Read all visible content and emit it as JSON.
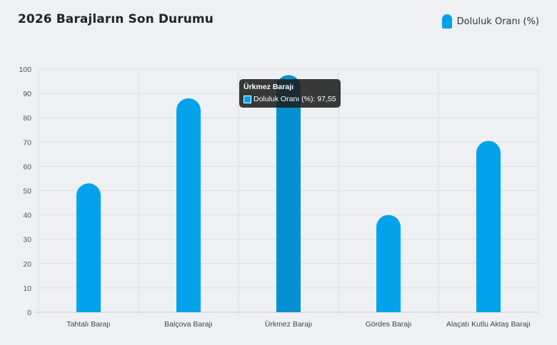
{
  "page": {
    "title": "2026 Barajların Son Durumu"
  },
  "legend": {
    "label": "Doluluk Oranı (%)"
  },
  "tooltip": {
    "title": "Ürkmez Barajı",
    "label": "Doluluk Oranı (%): 97,55"
  },
  "colors": {
    "bar": "#03a2ea",
    "bar_active": "#0290d1",
    "grid": "#dcdfe3"
  },
  "chart_data": {
    "type": "bar",
    "categories": [
      "Tahtalı Barajı",
      "Balçova Barajı",
      "Ürkmez Barajı",
      "Gördes Barajı",
      "Alaçatı Kutlu Aktaş Barajı"
    ],
    "series": [
      {
        "name": "Doluluk Oranı (%)",
        "values": [
          53,
          88,
          97.55,
          40,
          70.5
        ]
      }
    ],
    "ylim": [
      0,
      100
    ],
    "yticks": [
      "0",
      "10",
      "20",
      "30",
      "40",
      "50",
      "60",
      "70",
      "80",
      "90",
      "100"
    ],
    "grid": true,
    "legend_position": "top-right",
    "active_index": 2
  }
}
